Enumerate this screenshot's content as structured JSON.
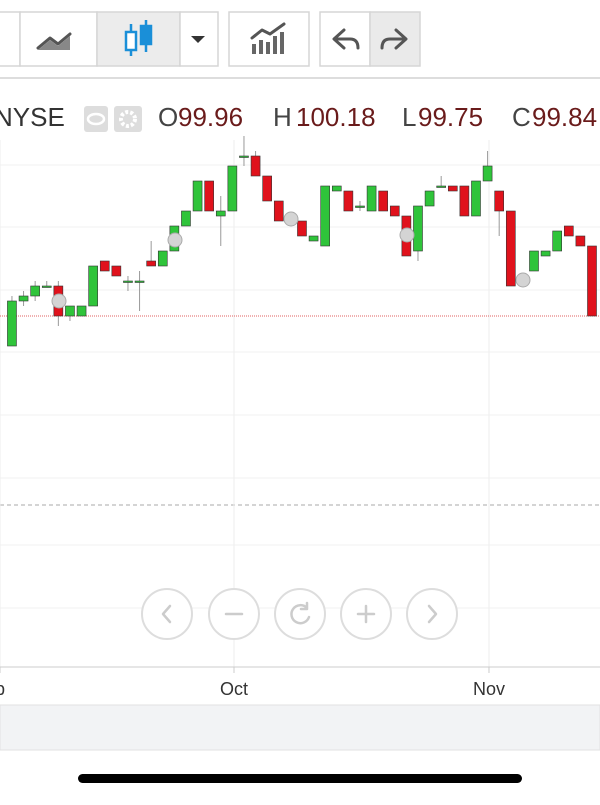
{
  "header": {
    "exchange": "NYSE",
    "ohlc": [
      {
        "label": "O",
        "value": 99.96
      },
      {
        "label": "H",
        "value": 100.18
      },
      {
        "label": "L",
        "value": 99.75
      },
      {
        "label": "C",
        "value": 99.84
      }
    ]
  },
  "chart_data": {
    "type": "candlestick",
    "x": [
      0,
      1,
      2,
      3,
      4,
      5,
      6,
      7,
      8,
      9,
      10,
      11,
      12,
      13,
      14,
      15,
      16,
      17,
      18,
      19,
      20,
      21,
      22,
      23,
      24,
      25,
      26,
      27,
      28,
      29,
      30,
      31,
      32,
      33,
      34,
      35,
      36,
      37,
      38,
      39,
      40,
      41,
      42,
      43,
      44,
      45,
      46,
      47,
      48,
      49,
      50
    ],
    "open": [
      99.78,
      99.87,
      99.88,
      99.9,
      99.9,
      99.84,
      99.84,
      99.86,
      99.95,
      99.94,
      99.91,
      99.91,
      99.95,
      99.94,
      99.97,
      100.02,
      100.05,
      100.11,
      100.04,
      100.05,
      100.16,
      100.16,
      100.12,
      100.07,
      100.03,
      100.03,
      99.99,
      99.98,
      100.09,
      100.09,
      100.06,
      100.05,
      100.09,
      100.06,
      100.04,
      99.97,
      100.06,
      100.1,
      100.1,
      100.1,
      100.04,
      100.11,
      100.09,
      100.05,
      99.92,
      99.93,
      99.96,
      99.97,
      100.02,
      100.0,
      99.98
    ],
    "high": [
      99.88,
      99.89,
      99.91,
      99.91,
      99.91,
      99.86,
      99.86,
      99.94,
      99.95,
      99.94,
      99.92,
      99.93,
      99.99,
      99.97,
      100.02,
      100.05,
      100.11,
      100.11,
      100.08,
      100.14,
      100.2,
      100.17,
      100.12,
      100.07,
      100.04,
      100.03,
      100.0,
      100.1,
      100.1,
      100.09,
      100.07,
      100.1,
      100.09,
      100.06,
      100.04,
      100.06,
      100.09,
      100.12,
      100.1,
      100.1,
      100.11,
      100.17,
      100.09,
      100.05,
      99.92,
      99.97,
      99.97,
      100.01,
      100.02,
      100.0,
      99.98
    ],
    "low": [
      99.78,
      99.86,
      99.87,
      99.9,
      99.82,
      99.83,
      99.84,
      99.86,
      99.93,
      99.92,
      99.89,
      99.85,
      99.94,
      99.94,
      99.97,
      100.02,
      100.05,
      100.05,
      99.98,
      100.05,
      100.14,
      100.12,
      100.07,
      100.03,
      100.02,
      100.0,
      99.99,
      99.98,
      100.09,
      100.05,
      100.05,
      100.05,
      100.05,
      100.04,
      99.96,
      99.95,
      100.06,
      100.1,
      100.09,
      100.04,
      100.04,
      100.11,
      100.0,
      99.9,
      99.91,
      99.93,
      99.96,
      99.97,
      100.0,
      99.98,
      99.84
    ],
    "close": [
      99.87,
      99.88,
      99.9,
      99.9,
      99.84,
      99.86,
      99.86,
      99.94,
      99.93,
      99.92,
      99.91,
      99.91,
      99.94,
      99.97,
      100.02,
      100.05,
      100.11,
      100.05,
      100.05,
      100.14,
      100.16,
      100.12,
      100.07,
      100.03,
      100.03,
      100.0,
      100.0,
      100.1,
      100.1,
      100.05,
      100.06,
      100.1,
      100.05,
      100.04,
      99.96,
      100.06,
      100.09,
      100.1,
      100.09,
      100.04,
      100.11,
      100.14,
      100.05,
      99.9,
      99.91,
      99.97,
      99.97,
      100.01,
      100.0,
      99.98,
      99.84
    ],
    "up_color": "#2fc43a",
    "down_color": "#e0121c",
    "xlim": [
      -1.03,
      50.69
    ],
    "ylim": [
      99.142,
      100.316
    ],
    "xticks": [
      {
        "value": -1.03,
        "label": "p"
      },
      {
        "value": 19.14,
        "label": "Oct"
      },
      {
        "value": 41.12,
        "label": "Nov"
      }
    ],
    "grid": true
  }
}
